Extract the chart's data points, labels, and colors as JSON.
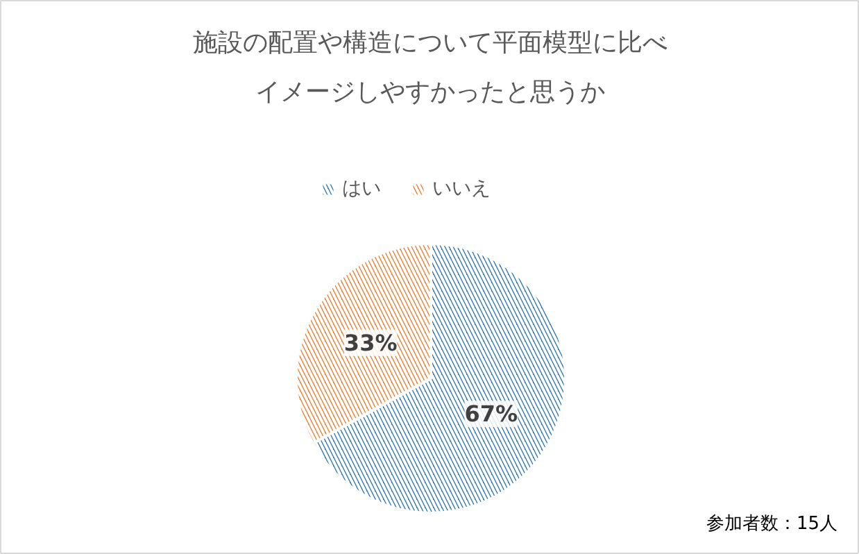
{
  "chart_data": {
    "type": "pie",
    "title": "施設の配置や構造について平面模型に比べイメージしやすかったと思うか",
    "categories": [
      "はい",
      "いいえ"
    ],
    "values": [
      67,
      33
    ],
    "colors": [
      "#2e75b6",
      "#ed7d31"
    ],
    "value_labels": [
      "67%",
      "33%"
    ],
    "legend": "top",
    "annotations": [
      "参加者数：15人"
    ]
  }
}
